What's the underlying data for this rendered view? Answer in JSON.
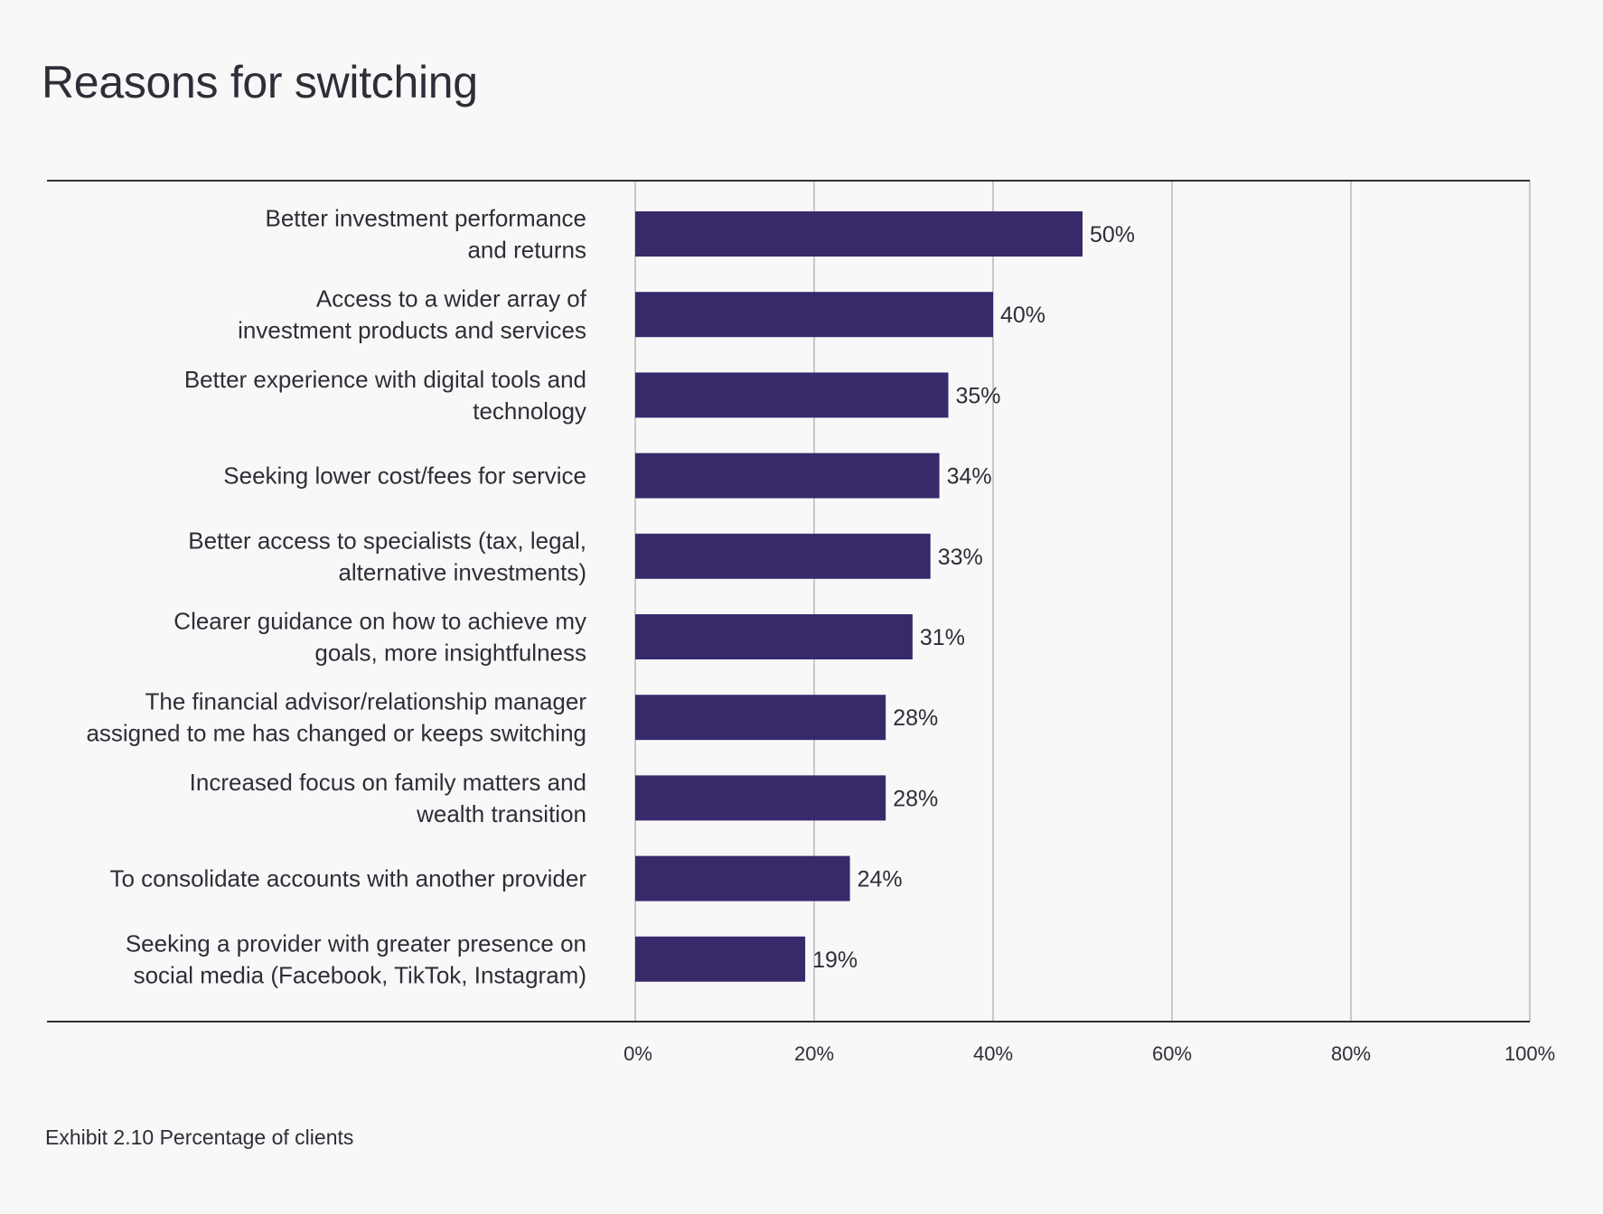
{
  "chart_data": {
    "type": "bar",
    "orientation": "horizontal",
    "title": "Reasons for switching",
    "caption": "Exhibit 2.10 Percentage of clients",
    "categories": [
      [
        "Better investment performance",
        "and returns"
      ],
      [
        "Access to a wider array of",
        "investment products and services"
      ],
      [
        "Better experience with digital tools and",
        "technology"
      ],
      [
        "Seeking lower cost/fees for service"
      ],
      [
        "Better access to specialists (tax, legal,",
        "alternative investments)"
      ],
      [
        "Clearer guidance on how to achieve my",
        "goals, more insightfulness"
      ],
      [
        "The financial advisor/relationship manager",
        "assigned to me has changed or keeps switching"
      ],
      [
        "Increased focus on family matters and",
        "wealth transition"
      ],
      [
        "To consolidate accounts with another provider"
      ],
      [
        "Seeking a provider with greater presence on",
        "social media (Facebook, TikTok, Instagram)"
      ]
    ],
    "values": [
      50,
      40,
      35,
      34,
      33,
      31,
      28,
      28,
      24,
      19
    ],
    "value_labels": [
      "50%",
      "40%",
      "35%",
      "34%",
      "33%",
      "31%",
      "28%",
      "28%",
      "24%",
      "19%"
    ],
    "xlim": [
      0,
      100
    ],
    "xticks": [
      0,
      20,
      40,
      60,
      80,
      100
    ],
    "xtick_labels": [
      "0%",
      "20%",
      "40%",
      "60%",
      "80%",
      "100%"
    ],
    "xlabel": "",
    "ylabel": "",
    "grid": "vertical",
    "legend": "none",
    "colors": {
      "bar": "#38296b",
      "grid": "#c8c8c8",
      "axis": "#2e2e38",
      "text": "#2e2e38",
      "background": "#f8f8f8"
    }
  }
}
